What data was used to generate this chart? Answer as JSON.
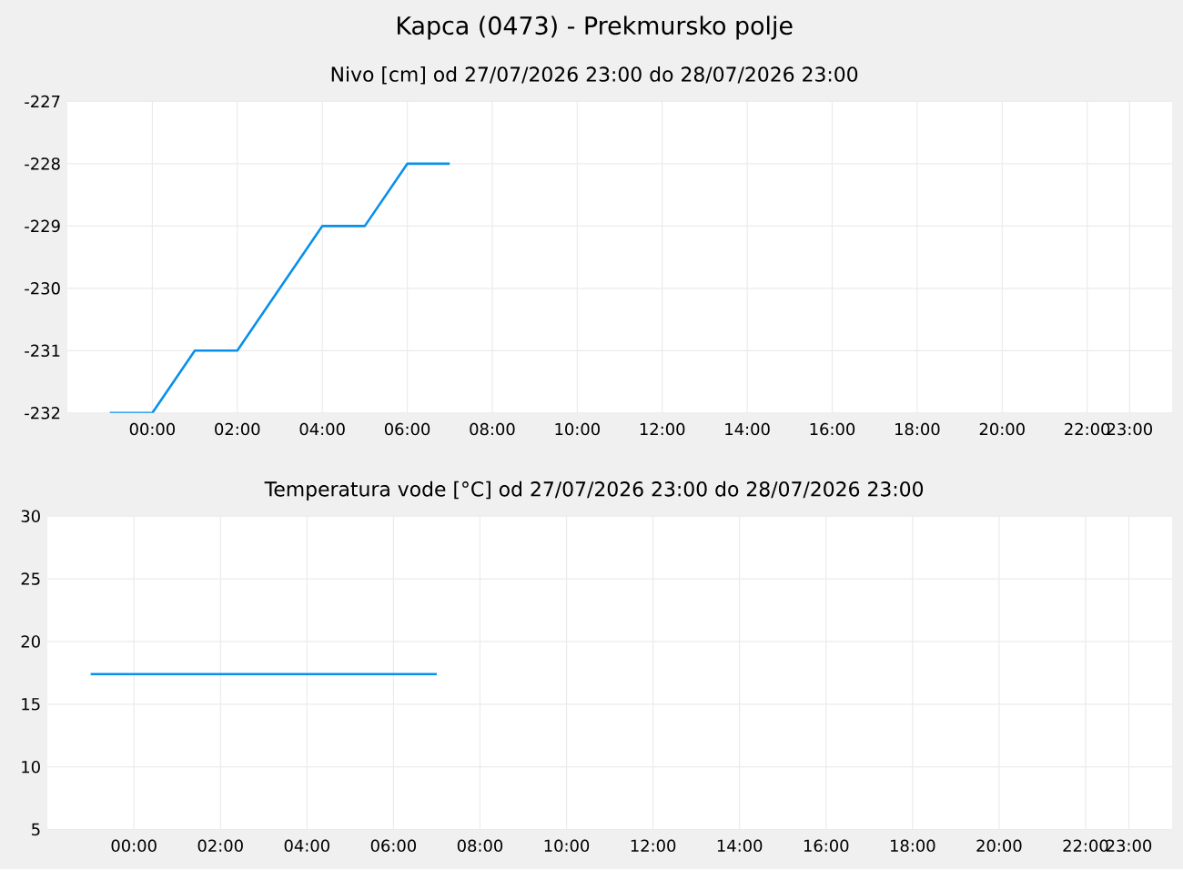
{
  "chart_data": [
    {
      "type": "line",
      "title": "Kapca (0473) - Prekmursko polje",
      "subtitle": "Nivo [cm] od 27/07/2026 23:00 do 28/07/2026 23:00",
      "x": [
        -1,
        0,
        1,
        2,
        3,
        4,
        5,
        6,
        7
      ],
      "series": [
        {
          "color": "#0890ea",
          "values": [
            -232,
            -232,
            -231,
            -231,
            -230,
            -229,
            -229,
            -228,
            -228
          ]
        }
      ],
      "xlim": [
        -2,
        24
      ],
      "ylim": [
        -232,
        -227
      ],
      "yticks": [
        -232,
        -231,
        -230,
        -229,
        -228,
        -227
      ],
      "xticks": [
        {
          "value": 0,
          "label": "00:00"
        },
        {
          "value": 2,
          "label": "02:00"
        },
        {
          "value": 4,
          "label": "04:00"
        },
        {
          "value": 6,
          "label": "06:00"
        },
        {
          "value": 8,
          "label": "08:00"
        },
        {
          "value": 10,
          "label": "10:00"
        },
        {
          "value": 12,
          "label": "12:00"
        },
        {
          "value": 14,
          "label": "14:00"
        },
        {
          "value": 16,
          "label": "16:00"
        },
        {
          "value": 18,
          "label": "18:00"
        },
        {
          "value": 20,
          "label": "20:00"
        },
        {
          "value": 22,
          "label": "22:00"
        },
        {
          "value": 23,
          "label": "23:00"
        }
      ],
      "grid": true
    },
    {
      "type": "line",
      "title": "Temperatura vode [°C] od 27/07/2026 23:00 do 28/07/2026 23:00",
      "x": [
        -1,
        7
      ],
      "series": [
        {
          "color": "#0890ea",
          "values": [
            17.4,
            17.4
          ]
        }
      ],
      "xlim": [
        -2,
        24
      ],
      "ylim": [
        5,
        30
      ],
      "yticks": [
        5,
        10,
        15,
        20,
        25,
        30
      ],
      "xticks": [
        {
          "value": 0,
          "label": "00:00"
        },
        {
          "value": 2,
          "label": "02:00"
        },
        {
          "value": 4,
          "label": "04:00"
        },
        {
          "value": 6,
          "label": "06:00"
        },
        {
          "value": 8,
          "label": "08:00"
        },
        {
          "value": 10,
          "label": "10:00"
        },
        {
          "value": 12,
          "label": "12:00"
        },
        {
          "value": 14,
          "label": "14:00"
        },
        {
          "value": 16,
          "label": "16:00"
        },
        {
          "value": 18,
          "label": "18:00"
        },
        {
          "value": 20,
          "label": "20:00"
        },
        {
          "value": 22,
          "label": "22:00"
        },
        {
          "value": 23,
          "label": "23:00"
        }
      ],
      "grid": true
    }
  ]
}
